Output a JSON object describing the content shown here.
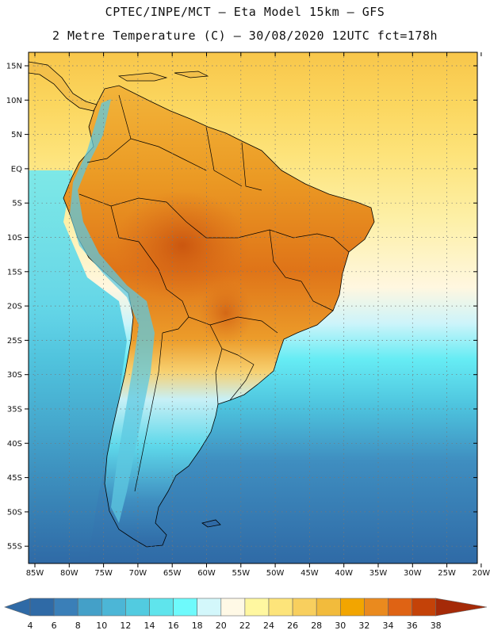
{
  "header": {
    "line1": "CPTEC/INPE/MCT –  Eta Model 15km – GFS",
    "line2": "2 Metre Temperature (C) – 30/08/2020 12UTC fct=178h"
  },
  "map": {
    "lon_labels": [
      "85W",
      "80W",
      "75W",
      "70W",
      "65W",
      "60W",
      "55W",
      "50W",
      "45W",
      "40W",
      "35W",
      "30W",
      "25W",
      "20W"
    ],
    "lat_labels": [
      "15N",
      "10N",
      "5N",
      "EQ",
      "5S",
      "10S",
      "15S",
      "20S",
      "25S",
      "30S",
      "35S",
      "40S",
      "45S",
      "50S",
      "55S"
    ],
    "lon_range": [
      -85,
      -20
    ],
    "lat_range": [
      -57,
      16
    ],
    "grid": "dotted"
  },
  "colorbar": {
    "colors": [
      "#2f6aa6",
      "#3a7fb8",
      "#44a0c8",
      "#4cb6d6",
      "#52cbe0",
      "#5fe4ec",
      "#6efafc",
      "#d3f7fb",
      "#fff9e6",
      "#fff7a0",
      "#fde47a",
      "#f8cf5e",
      "#f2bb3c",
      "#f2a500",
      "#ea8a1e",
      "#df6314",
      "#c44208",
      "#a52a08"
    ],
    "labels": [
      "4",
      "6",
      "8",
      "10",
      "12",
      "14",
      "16",
      "18",
      "20",
      "22",
      "24",
      "26",
      "28",
      "30",
      "32",
      "34",
      "36",
      "38"
    ]
  }
}
